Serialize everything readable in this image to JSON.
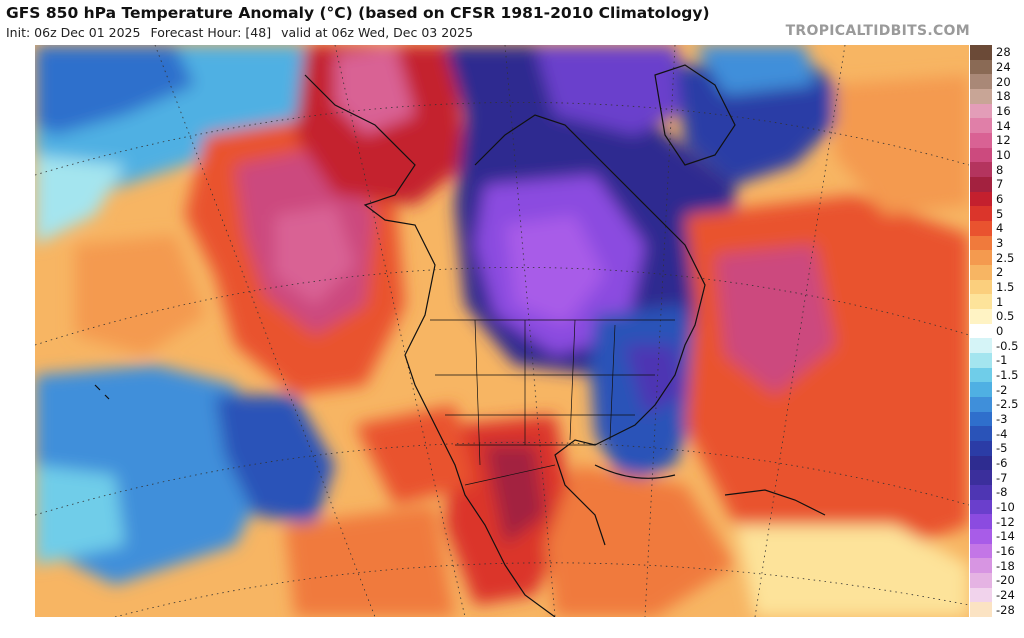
{
  "header": {
    "title": "GFS 850 hPa Temperature Anomaly (°C) (based on CFSR 1981-2010 Climatology)",
    "init": "Init: 06z Dec 01 2025",
    "forecast_hour": "Forecast Hour: [48]",
    "valid": "valid at 06z Wed, Dec 03 2025",
    "brand": "TROPICALTIDBITS.COM"
  },
  "colorbar": {
    "levels": [
      {
        "label": "28",
        "color": "#6b4a37"
      },
      {
        "label": "24",
        "color": "#8a6a55"
      },
      {
        "label": "20",
        "color": "#a98877"
      },
      {
        "label": "18",
        "color": "#c8a596"
      },
      {
        "label": "16",
        "color": "#e39db8"
      },
      {
        "label": "14",
        "color": "#e07fa8"
      },
      {
        "label": "12",
        "color": "#d96294"
      },
      {
        "label": "10",
        "color": "#cc4a7e"
      },
      {
        "label": "8",
        "color": "#b4345e"
      },
      {
        "label": "7",
        "color": "#a3213f"
      },
      {
        "label": "6",
        "color": "#c4202e"
      },
      {
        "label": "5",
        "color": "#db352b"
      },
      {
        "label": "4",
        "color": "#e9532f"
      },
      {
        "label": "3",
        "color": "#f07a3c"
      },
      {
        "label": "2.5",
        "color": "#f49a4f"
      },
      {
        "label": "2",
        "color": "#f7b563"
      },
      {
        "label": "1.5",
        "color": "#fbcf7d"
      },
      {
        "label": "1",
        "color": "#fde39a"
      },
      {
        "label": "0.5",
        "color": "#fff3c4"
      },
      {
        "label": "0",
        "color": "#ffffff"
      },
      {
        "label": "-0.5",
        "color": "#d5f4f7"
      },
      {
        "label": "-1",
        "color": "#a4e5ef"
      },
      {
        "label": "-1.5",
        "color": "#6fcde9"
      },
      {
        "label": "-2",
        "color": "#4fb0e3"
      },
      {
        "label": "-2.5",
        "color": "#3f8fda"
      },
      {
        "label": "-3",
        "color": "#2f6fcc"
      },
      {
        "label": "-4",
        "color": "#2a53b8"
      },
      {
        "label": "-5",
        "color": "#2b3ca6"
      },
      {
        "label": "-6",
        "color": "#2e2c90"
      },
      {
        "label": "-7",
        "color": "#3b2f9c"
      },
      {
        "label": "-8",
        "color": "#4e36b3"
      },
      {
        "label": "-10",
        "color": "#6a3fcc"
      },
      {
        "label": "-12",
        "color": "#8b4be0"
      },
      {
        "label": "-14",
        "color": "#a85ce8"
      },
      {
        "label": "-16",
        "color": "#c376e6"
      },
      {
        "label": "-18",
        "color": "#d795e2"
      },
      {
        "label": "-20",
        "color": "#e5b3e3"
      },
      {
        "label": "-24",
        "color": "#f1d3ec"
      },
      {
        "label": "-28",
        "color": "#fbe3c3"
      }
    ]
  }
}
